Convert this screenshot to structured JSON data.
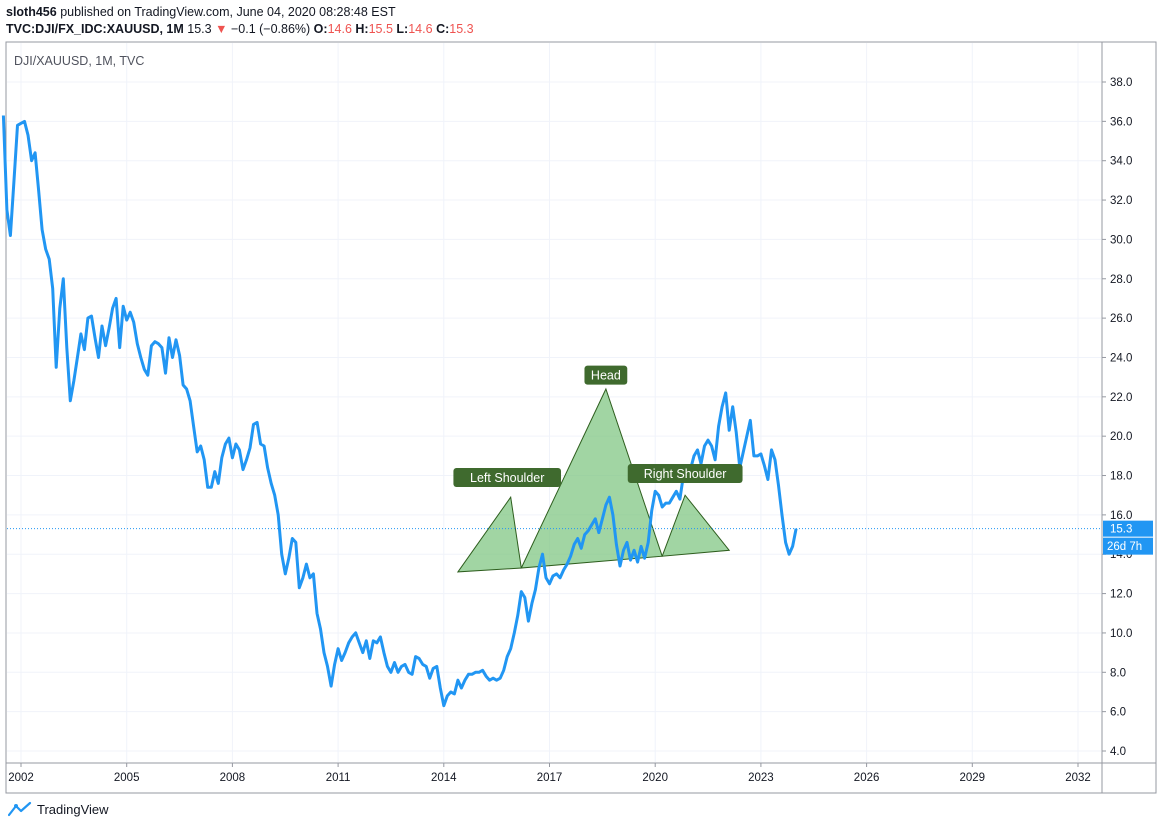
{
  "header": {
    "author": "sloth456",
    "published_text": "published on TradingView.com, June 04, 2020 08:28:48 EST",
    "symbol": "TVC:DJI/FX_IDC:XAUUSD, 1M",
    "last": "15.3",
    "change": "−0.1 (−0.86%)",
    "o_label": "O:",
    "o_value": "14.6",
    "h_label": "H:",
    "h_value": "15.5",
    "l_label": "L:",
    "l_value": "14.6",
    "c_label": "C:",
    "c_value": "15.3"
  },
  "legend_label": "DJI/XAUUSD, 1M, TVC",
  "footer": {
    "brand": "TradingView"
  },
  "colors": {
    "line": "#2196f3",
    "pattern_fill": "#81c784",
    "pattern_stroke": "#2e5e1e",
    "label_bg": "#3f6a2e",
    "price_tag": "#2196f3"
  },
  "chart_data": {
    "type": "line",
    "series": [
      {
        "values": [
          [
            2001.5,
            36.3
          ],
          [
            2001.6,
            31.5
          ],
          [
            2001.7,
            30.2
          ],
          [
            2001.8,
            33.0
          ],
          [
            2001.9,
            35.8
          ],
          [
            2002.0,
            35.9
          ],
          [
            2002.1,
            36.0
          ],
          [
            2002.2,
            35.3
          ],
          [
            2002.3,
            34.0
          ],
          [
            2002.4,
            34.4
          ],
          [
            2002.5,
            32.5
          ],
          [
            2002.6,
            30.5
          ],
          [
            2002.7,
            29.5
          ],
          [
            2002.8,
            29.0
          ],
          [
            2002.9,
            27.5
          ],
          [
            2003.0,
            23.5
          ],
          [
            2003.1,
            26.5
          ],
          [
            2003.2,
            28.0
          ],
          [
            2003.3,
            24.5
          ],
          [
            2003.4,
            21.8
          ],
          [
            2003.5,
            22.8
          ],
          [
            2003.6,
            24.0
          ],
          [
            2003.7,
            25.2
          ],
          [
            2003.8,
            24.4
          ],
          [
            2003.9,
            26.0
          ],
          [
            2004.0,
            26.1
          ],
          [
            2004.1,
            25.0
          ],
          [
            2004.2,
            24.0
          ],
          [
            2004.3,
            25.6
          ],
          [
            2004.4,
            24.6
          ],
          [
            2004.5,
            25.5
          ],
          [
            2004.6,
            26.5
          ],
          [
            2004.7,
            27.0
          ],
          [
            2004.8,
            24.5
          ],
          [
            2004.9,
            26.6
          ],
          [
            2005.0,
            25.9
          ],
          [
            2005.1,
            26.3
          ],
          [
            2005.2,
            25.8
          ],
          [
            2005.3,
            24.7
          ],
          [
            2005.4,
            24.0
          ],
          [
            2005.5,
            23.4
          ],
          [
            2005.6,
            23.1
          ],
          [
            2005.7,
            24.6
          ],
          [
            2005.8,
            24.8
          ],
          [
            2005.9,
            24.7
          ],
          [
            2006.0,
            24.5
          ],
          [
            2006.1,
            23.2
          ],
          [
            2006.2,
            25.0
          ],
          [
            2006.3,
            24.0
          ],
          [
            2006.4,
            24.9
          ],
          [
            2006.5,
            24.1
          ],
          [
            2006.6,
            22.6
          ],
          [
            2006.7,
            22.4
          ],
          [
            2006.8,
            21.8
          ],
          [
            2006.9,
            20.5
          ],
          [
            2007.0,
            19.2
          ],
          [
            2007.1,
            19.5
          ],
          [
            2007.2,
            18.8
          ],
          [
            2007.3,
            17.4
          ],
          [
            2007.4,
            17.4
          ],
          [
            2007.5,
            18.2
          ],
          [
            2007.6,
            17.6
          ],
          [
            2007.7,
            18.9
          ],
          [
            2007.8,
            19.6
          ],
          [
            2007.9,
            19.9
          ],
          [
            2008.0,
            18.9
          ],
          [
            2008.1,
            19.6
          ],
          [
            2008.2,
            19.3
          ],
          [
            2008.3,
            18.3
          ],
          [
            2008.4,
            18.8
          ],
          [
            2008.5,
            19.4
          ],
          [
            2008.6,
            20.6
          ],
          [
            2008.7,
            20.7
          ],
          [
            2008.8,
            19.6
          ],
          [
            2008.9,
            19.5
          ],
          [
            2009.0,
            18.4
          ],
          [
            2009.1,
            17.6
          ],
          [
            2009.2,
            17.0
          ],
          [
            2009.3,
            16.0
          ],
          [
            2009.4,
            14.0
          ],
          [
            2009.5,
            13.0
          ],
          [
            2009.6,
            13.8
          ],
          [
            2009.7,
            14.8
          ],
          [
            2009.8,
            14.6
          ],
          [
            2009.9,
            12.3
          ],
          [
            2010.0,
            12.8
          ],
          [
            2010.1,
            13.5
          ],
          [
            2010.2,
            12.8
          ],
          [
            2010.3,
            13.0
          ],
          [
            2010.4,
            11.0
          ],
          [
            2010.5,
            10.2
          ],
          [
            2010.6,
            9.0
          ],
          [
            2010.7,
            8.3
          ],
          [
            2010.8,
            7.3
          ],
          [
            2010.9,
            8.4
          ],
          [
            2011.0,
            9.2
          ],
          [
            2011.1,
            8.6
          ],
          [
            2011.2,
            9.0
          ],
          [
            2011.3,
            9.5
          ],
          [
            2011.4,
            9.8
          ],
          [
            2011.5,
            10.0
          ],
          [
            2011.6,
            9.5
          ],
          [
            2011.7,
            9.0
          ],
          [
            2011.8,
            9.6
          ],
          [
            2011.9,
            8.7
          ],
          [
            2012.0,
            9.6
          ],
          [
            2012.1,
            9.5
          ],
          [
            2012.2,
            9.8
          ],
          [
            2012.3,
            9.0
          ],
          [
            2012.4,
            8.3
          ],
          [
            2012.5,
            8.0
          ],
          [
            2012.6,
            8.5
          ],
          [
            2012.7,
            8.0
          ],
          [
            2012.8,
            8.3
          ],
          [
            2012.9,
            8.4
          ],
          [
            2013.0,
            8.0
          ],
          [
            2013.1,
            7.9
          ],
          [
            2013.2,
            8.8
          ],
          [
            2013.3,
            8.7
          ],
          [
            2013.4,
            8.4
          ],
          [
            2013.5,
            8.3
          ],
          [
            2013.6,
            7.7
          ],
          [
            2013.7,
            8.2
          ],
          [
            2013.8,
            8.3
          ],
          [
            2013.9,
            7.2
          ],
          [
            2014.0,
            6.3
          ],
          [
            2014.1,
            6.8
          ],
          [
            2014.2,
            7.0
          ],
          [
            2014.3,
            6.9
          ],
          [
            2014.4,
            7.6
          ],
          [
            2014.5,
            7.2
          ],
          [
            2014.6,
            7.6
          ],
          [
            2014.7,
            7.9
          ],
          [
            2014.8,
            7.9
          ],
          [
            2014.9,
            8.0
          ],
          [
            2015.0,
            8.0
          ],
          [
            2015.1,
            8.1
          ],
          [
            2015.2,
            7.8
          ],
          [
            2015.3,
            7.6
          ],
          [
            2015.4,
            7.7
          ],
          [
            2015.5,
            7.6
          ],
          [
            2015.6,
            7.7
          ],
          [
            2015.7,
            8.1
          ],
          [
            2015.8,
            8.8
          ],
          [
            2015.9,
            9.2
          ],
          [
            2016.0,
            10.0
          ],
          [
            2016.1,
            10.9
          ],
          [
            2016.2,
            12.1
          ],
          [
            2016.3,
            11.8
          ],
          [
            2016.4,
            10.6
          ],
          [
            2016.5,
            11.5
          ],
          [
            2016.6,
            12.2
          ],
          [
            2016.7,
            13.3
          ],
          [
            2016.8,
            14.0
          ],
          [
            2016.9,
            12.8
          ],
          [
            2017.0,
            12.5
          ],
          [
            2017.1,
            12.9
          ],
          [
            2017.2,
            13.0
          ],
          [
            2017.3,
            12.8
          ],
          [
            2017.4,
            13.2
          ],
          [
            2017.5,
            13.5
          ],
          [
            2017.6,
            13.9
          ],
          [
            2017.7,
            14.5
          ],
          [
            2017.8,
            14.8
          ],
          [
            2017.9,
            14.3
          ],
          [
            2018.0,
            15.0
          ],
          [
            2018.1,
            15.2
          ],
          [
            2018.2,
            15.5
          ],
          [
            2018.3,
            15.8
          ],
          [
            2018.4,
            15.1
          ],
          [
            2018.5,
            15.8
          ],
          [
            2018.6,
            16.5
          ],
          [
            2018.7,
            16.9
          ],
          [
            2018.8,
            16.0
          ],
          [
            2018.9,
            14.5
          ],
          [
            2019.0,
            13.4
          ],
          [
            2019.1,
            14.2
          ],
          [
            2019.2,
            14.6
          ],
          [
            2019.3,
            13.7
          ],
          [
            2019.4,
            14.2
          ],
          [
            2019.5,
            13.6
          ],
          [
            2019.6,
            14.4
          ],
          [
            2019.7,
            13.8
          ],
          [
            2019.8,
            14.6
          ],
          [
            2019.9,
            16.2
          ],
          [
            2020.0,
            17.2
          ],
          [
            2020.1,
            17.0
          ],
          [
            2020.2,
            16.4
          ],
          [
            2020.3,
            16.6
          ],
          [
            2020.4,
            16.6
          ],
          [
            2020.5,
            16.9
          ],
          [
            2020.6,
            17.2
          ],
          [
            2020.7,
            16.8
          ],
          [
            2020.8,
            18.0
          ],
          [
            2020.9,
            18.5
          ],
          [
            2021.0,
            18.3
          ],
          [
            2021.1,
            19.0
          ],
          [
            2021.2,
            19.3
          ],
          [
            2021.3,
            18.6
          ],
          [
            2021.4,
            19.5
          ],
          [
            2021.5,
            19.8
          ],
          [
            2021.6,
            19.5
          ],
          [
            2021.7,
            18.8
          ],
          [
            2021.8,
            20.5
          ],
          [
            2021.9,
            21.5
          ],
          [
            2022.0,
            22.2
          ],
          [
            2022.1,
            20.3
          ],
          [
            2022.2,
            21.5
          ],
          [
            2022.3,
            20.2
          ],
          [
            2022.4,
            18.4
          ],
          [
            2022.5,
            19.2
          ],
          [
            2022.6,
            20.0
          ],
          [
            2022.7,
            20.8
          ],
          [
            2022.8,
            19.0
          ],
          [
            2022.9,
            19.0
          ],
          [
            2023.0,
            19.1
          ],
          [
            2023.1,
            18.5
          ],
          [
            2023.2,
            17.8
          ],
          [
            2023.3,
            19.3
          ],
          [
            2023.4,
            18.8
          ],
          [
            2023.5,
            17.5
          ],
          [
            2023.6,
            16.0
          ],
          [
            2023.7,
            14.6
          ],
          [
            2023.8,
            14.0
          ],
          [
            2023.9,
            14.4
          ],
          [
            2024.0,
            15.3
          ]
        ]
      }
    ],
    "pattern": {
      "triangles": [
        [
          [
            2014.4,
            13.1
          ],
          [
            2015.9,
            16.9
          ],
          [
            2016.2,
            13.3
          ]
        ],
        [
          [
            2016.2,
            13.3
          ],
          [
            2018.6,
            22.4
          ],
          [
            2020.2,
            13.9
          ]
        ],
        [
          [
            2020.2,
            13.9
          ],
          [
            2020.85,
            17.0
          ],
          [
            2022.1,
            14.2
          ]
        ]
      ],
      "labels": [
        {
          "text": "Left Shoulder",
          "x": 2015.8,
          "y": 17.9
        },
        {
          "text": "Head",
          "x": 2018.6,
          "y": 23.1
        },
        {
          "text": "Right Shoulder",
          "x": 2020.85,
          "y": 18.1
        }
      ]
    },
    "price_line": 15.3,
    "price_label": "15.3",
    "countdown_label": "26d 7h",
    "xlabels": [
      "2002",
      "2005",
      "2008",
      "2011",
      "2014",
      "2017",
      "2020",
      "2023",
      "2026",
      "2029",
      "2032"
    ],
    "ylabels": [
      "4.0",
      "6.0",
      "8.0",
      "10.0",
      "12.0",
      "14.0",
      "16.0",
      "18.0",
      "20.0",
      "22.0",
      "24.0",
      "26.0",
      "28.0",
      "30.0",
      "32.0",
      "34.0",
      "36.0",
      "38.0"
    ],
    "ylim": [
      4.0,
      38.0
    ],
    "grid": true
  }
}
